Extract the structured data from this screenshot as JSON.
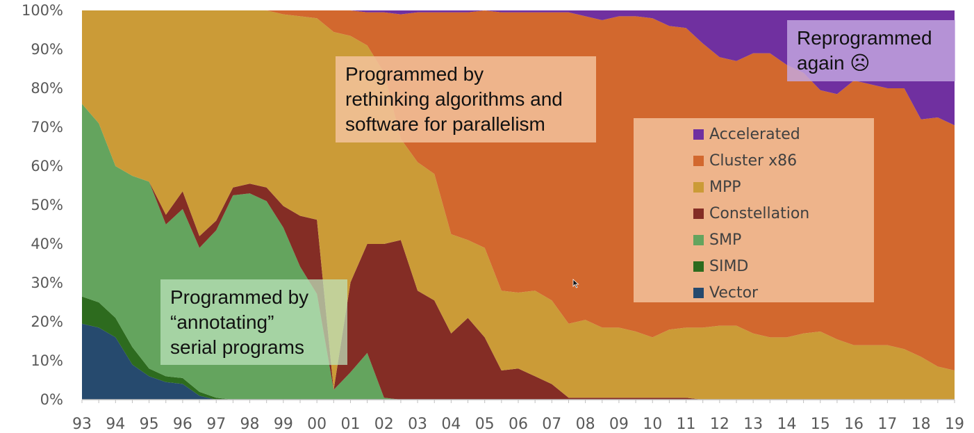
{
  "chart_data": {
    "type": "area",
    "stacked": "percent",
    "x": [
      "93",
      "93.5",
      "94",
      "94.5",
      "95",
      "95.5",
      "96",
      "96.5",
      "97",
      "97.5",
      "98",
      "98.5",
      "99",
      "99.5",
      "00",
      "00.5",
      "01",
      "01.5",
      "02",
      "02.5",
      "03",
      "03.5",
      "04",
      "04.5",
      "05",
      "05.5",
      "06",
      "06.5",
      "07",
      "07.5",
      "08",
      "08.5",
      "09",
      "09.5",
      "10",
      "10.5",
      "11",
      "11.5",
      "12",
      "12.5",
      "13",
      "13.5",
      "14",
      "14.5",
      "15",
      "15.5",
      "16",
      "16.5",
      "17",
      "17.5",
      "18",
      "18.5",
      "19"
    ],
    "x_tick_labels": [
      "93",
      "94",
      "95",
      "96",
      "97",
      "98",
      "99",
      "00",
      "01",
      "02",
      "03",
      "04",
      "05",
      "06",
      "07",
      "08",
      "09",
      "10",
      "11",
      "12",
      "13",
      "14",
      "15",
      "16",
      "17",
      "18",
      "19"
    ],
    "y_tick_labels": [
      "0%",
      "10%",
      "20%",
      "30%",
      "40%",
      "50%",
      "60%",
      "70%",
      "80%",
      "90%",
      "100%"
    ],
    "ylim": [
      0,
      100
    ],
    "grid": false,
    "legend_position": "right",
    "series": [
      {
        "name": "Vector",
        "color": "#264A6E",
        "values": [
          19.5,
          18.5,
          16,
          9,
          6,
          4.5,
          4,
          1,
          0,
          0,
          0,
          0,
          0,
          0,
          0,
          0,
          0,
          0,
          0,
          0,
          0,
          0,
          0,
          0,
          0,
          0,
          0,
          0,
          0,
          0,
          0,
          0,
          0,
          0,
          0,
          0,
          0,
          0,
          0,
          0,
          0,
          0,
          0,
          0,
          0,
          0,
          0,
          0,
          0,
          0,
          0,
          0,
          0
        ]
      },
      {
        "name": "SIMD",
        "color": "#2D6B1E",
        "values": [
          7,
          6.5,
          5,
          4.5,
          2,
          1.5,
          1.5,
          1,
          0.5,
          0,
          0,
          0,
          0,
          0,
          0,
          0,
          0,
          0,
          0,
          0,
          0,
          0,
          0,
          0,
          0,
          0,
          0,
          0,
          0,
          0,
          0,
          0,
          0,
          0,
          0,
          0,
          0,
          0,
          0,
          0,
          0,
          0,
          0,
          0,
          0,
          0,
          0,
          0,
          0,
          0,
          0,
          0,
          0
        ]
      },
      {
        "name": "SMP",
        "color": "#64A45E",
        "values": [
          49.5,
          46,
          39,
          44,
          48,
          39,
          43,
          37,
          43,
          52.5,
          53,
          51,
          44,
          34,
          27,
          2.5,
          7,
          12,
          0.5,
          0,
          0,
          0,
          0,
          0,
          0,
          0,
          0,
          0,
          0,
          0,
          0,
          0,
          0,
          0,
          0,
          0,
          0,
          0,
          0,
          0,
          0,
          0,
          0,
          0,
          0,
          0,
          0,
          0,
          0,
          0,
          0,
          0,
          0
        ]
      },
      {
        "name": "Constellation",
        "color": "#842D25",
        "values": [
          0,
          0,
          0,
          0,
          0,
          2.5,
          4.5,
          3,
          2.5,
          2,
          2.5,
          3.5,
          5.5,
          13,
          19,
          0,
          23,
          28,
          39.5,
          41,
          28,
          25.5,
          17,
          21,
          16,
          7.5,
          8,
          6,
          4,
          0.5,
          0.5,
          0.5,
          0.5,
          0.5,
          0.5,
          0.5,
          0.5,
          0,
          0,
          0,
          0,
          0,
          0,
          0,
          0,
          0,
          0,
          0,
          0,
          0,
          0,
          0,
          0
        ]
      },
      {
        "name": "MPP",
        "color": "#CB9B37",
        "values": [
          24,
          29,
          40,
          42.5,
          44,
          52.5,
          46,
          58,
          54,
          45.5,
          44.5,
          45.5,
          49,
          51,
          51.5,
          91.5,
          63,
          51,
          44,
          26,
          33,
          32.5,
          25.5,
          20,
          23,
          20.5,
          19.5,
          22,
          21.5,
          19,
          20,
          18,
          18,
          17,
          15.5,
          17.5,
          18,
          18.5,
          19,
          19,
          17,
          16,
          16,
          17,
          17.5,
          15.5,
          14,
          14,
          14,
          13,
          11,
          8.5,
          7.5
        ]
      },
      {
        "name": "Cluster x86",
        "color": "#D2682E",
        "values": [
          0,
          0,
          0,
          0,
          0,
          0,
          0,
          0,
          0,
          0,
          0,
          0,
          1,
          1.5,
          2,
          5.5,
          6.5,
          8.5,
          15.5,
          32,
          38.5,
          41.5,
          57,
          58.5,
          61,
          71.5,
          72,
          71.5,
          74,
          80,
          78,
          79,
          80,
          81,
          82,
          78,
          77,
          73,
          69,
          68,
          72,
          73,
          70,
          67,
          62,
          63,
          68,
          67,
          66,
          67,
          61,
          64,
          63
        ]
      },
      {
        "name": "Accelerated",
        "color": "#7030A0",
        "values": [
          0,
          0,
          0,
          0,
          0,
          0,
          0,
          0,
          0,
          0,
          0,
          0,
          0,
          0,
          0,
          0,
          0,
          0.5,
          0.5,
          1,
          0.5,
          0.5,
          0.5,
          0.5,
          0,
          0.5,
          0.5,
          0.5,
          0.5,
          0.5,
          1.5,
          2.5,
          1.5,
          1.5,
          2,
          4,
          4.5,
          8.5,
          12,
          13,
          11,
          11,
          14,
          16,
          20.5,
          21.5,
          18,
          19,
          20,
          20,
          28,
          27.5,
          29.5
        ]
      }
    ]
  },
  "annotations": {
    "mid": [
      "Programmed by",
      "rethinking algorithms and",
      "software for parallelism"
    ],
    "left": [
      "Programmed by",
      "“annotating”",
      "serial programs"
    ],
    "right": [
      "Reprogrammed",
      "again ☹"
    ]
  },
  "legend_order": [
    "Accelerated",
    "Cluster x86",
    "MPP",
    "Constellation",
    "SMP",
    "SIMD",
    "Vector"
  ]
}
